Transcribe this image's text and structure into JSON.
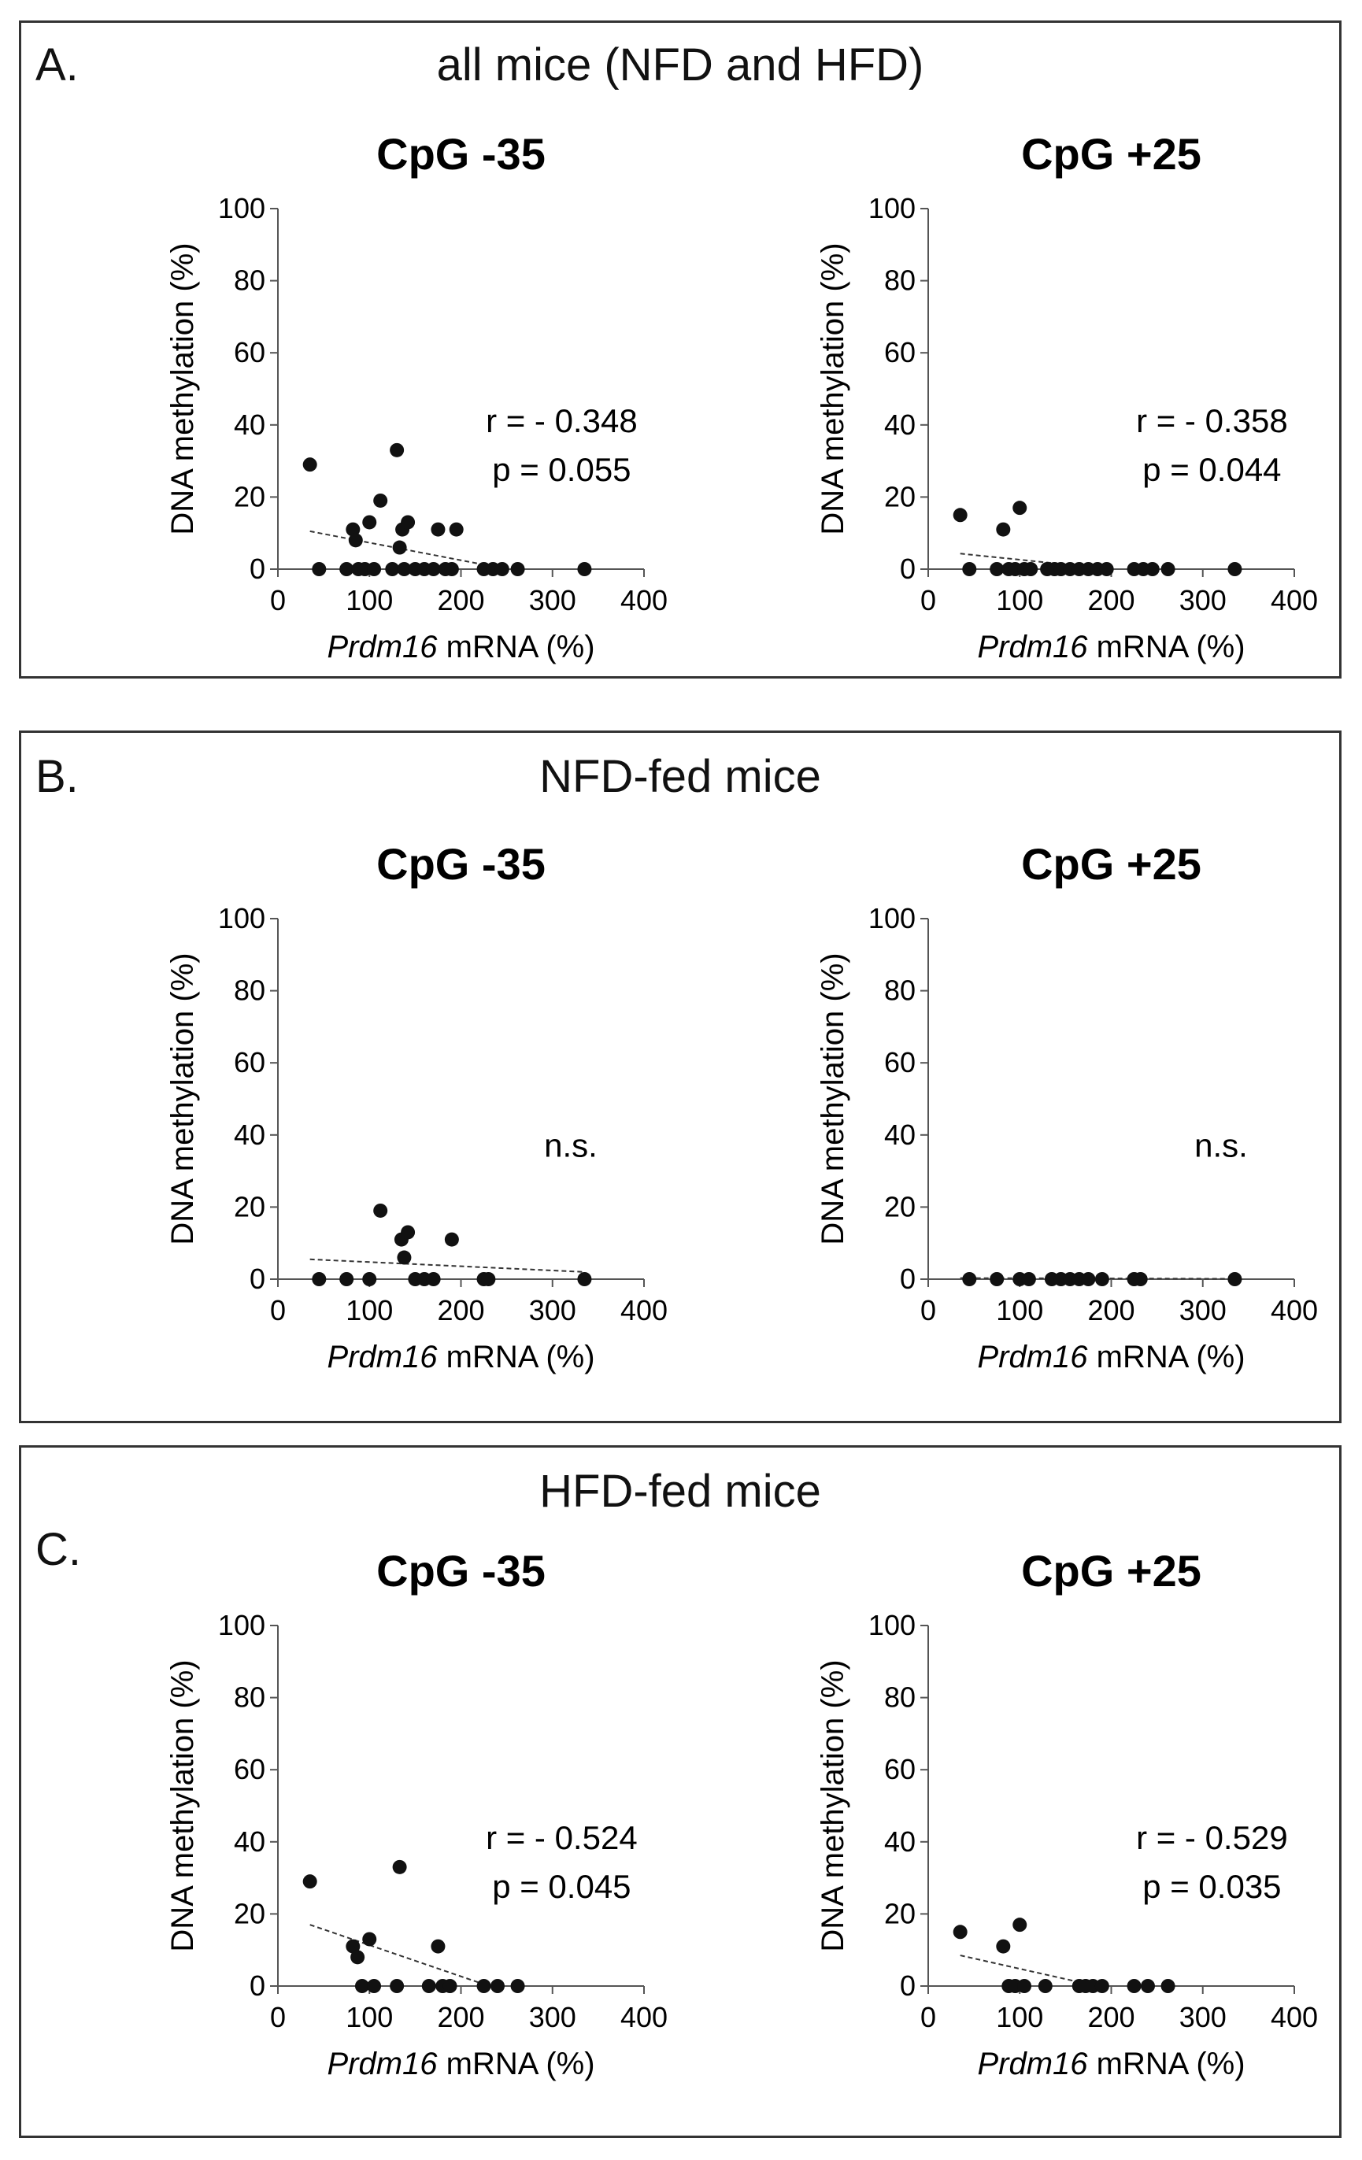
{
  "panels": [
    {
      "id": "A",
      "letter": "A.",
      "title": "all mice (NFD and HFD)",
      "charts": [
        {
          "type": "scatter",
          "title": "CpG -35",
          "xlabel_italic": "Prdm16",
          "xlabel_rest": " mRNA (%)",
          "ylabel": "DNA methylation (%)",
          "xlim": [
            0,
            400
          ],
          "ylim": [
            0,
            100
          ],
          "xticks": [
            0,
            100,
            200,
            300,
            400
          ],
          "yticks": [
            0,
            20,
            40,
            60,
            80,
            100
          ],
          "stat_lines": [
            "r = - 0.348",
            "p = 0.055"
          ],
          "trendline": {
            "x": [
              35,
              230
            ],
            "y": [
              10.5,
              1.0
            ]
          },
          "points": {
            "x": [
              35,
              45,
              75,
              82,
              85,
              88,
              95,
              100,
              105,
              112,
              125,
              130,
              133,
              136,
              138,
              142,
              150,
              160,
              170,
              175,
              183,
              190,
              195,
              225,
              235,
              245,
              262,
              335
            ],
            "y": [
              29,
              0,
              0,
              11,
              8,
              0,
              0,
              13,
              0,
              19,
              0,
              33,
              6,
              11,
              0,
              13,
              0,
              0,
              0,
              11,
              0,
              0,
              11,
              0,
              0,
              0,
              0,
              0
            ]
          }
        },
        {
          "type": "scatter",
          "title": "CpG +25",
          "xlabel_italic": "Prdm16",
          "xlabel_rest": " mRNA (%)",
          "ylabel": "DNA methylation (%)",
          "xlim": [
            0,
            400
          ],
          "ylim": [
            0,
            100
          ],
          "xticks": [
            0,
            100,
            200,
            300,
            400
          ],
          "yticks": [
            0,
            20,
            40,
            60,
            80,
            100
          ],
          "stat_lines": [
            "r = - 0.358",
            "p = 0.044"
          ],
          "trendline": {
            "x": [
              35,
              170
            ],
            "y": [
              4.3,
              0.8
            ]
          },
          "points": {
            "x": [
              35,
              45,
              75,
              82,
              88,
              95,
              100,
              105,
              112,
              130,
              138,
              145,
              155,
              165,
              175,
              185,
              195,
              225,
              235,
              245,
              262,
              335
            ],
            "y": [
              15,
              0,
              0,
              11,
              0,
              0,
              17,
              0,
              0,
              0,
              0,
              0,
              0,
              0,
              0,
              0,
              0,
              0,
              0,
              0,
              0,
              0
            ]
          }
        }
      ]
    },
    {
      "id": "B",
      "letter": "B.",
      "title": "NFD-fed mice",
      "charts": [
        {
          "type": "scatter",
          "title": "CpG -35",
          "xlabel_italic": "Prdm16",
          "xlabel_rest": " mRNA (%)",
          "ylabel": "DNA methylation (%)",
          "xlim": [
            0,
            400
          ],
          "ylim": [
            0,
            100
          ],
          "xticks": [
            0,
            100,
            200,
            300,
            400
          ],
          "yticks": [
            0,
            20,
            40,
            60,
            80,
            100
          ],
          "stat_lines": [
            "n.s."
          ],
          "trendline": {
            "x": [
              35,
              335
            ],
            "y": [
              5.5,
              2.0
            ]
          },
          "points": {
            "x": [
              45,
              75,
              100,
              112,
              135,
              138,
              142,
              150,
              160,
              170,
              190,
              225,
              230,
              335
            ],
            "y": [
              0,
              0,
              0,
              19,
              11,
              6,
              13,
              0,
              0,
              0,
              11,
              0,
              0,
              0
            ]
          }
        },
        {
          "type": "scatter",
          "title": "CpG +25",
          "xlabel_italic": "Prdm16",
          "xlabel_rest": " mRNA (%)",
          "ylabel": "DNA methylation (%)",
          "xlim": [
            0,
            400
          ],
          "ylim": [
            0,
            100
          ],
          "xticks": [
            0,
            100,
            200,
            300,
            400
          ],
          "yticks": [
            0,
            20,
            40,
            60,
            80,
            100
          ],
          "stat_lines": [
            "n.s."
          ],
          "trendline": {
            "x": [
              35,
              335
            ],
            "y": [
              0.3,
              0.1
            ]
          },
          "points": {
            "x": [
              45,
              75,
              100,
              110,
              135,
              145,
              155,
              165,
              175,
              190,
              225,
              232,
              335
            ],
            "y": [
              0,
              0,
              0,
              0,
              0,
              0,
              0,
              0,
              0,
              0,
              0,
              0,
              0
            ]
          }
        }
      ]
    },
    {
      "id": "C",
      "letter": "C.",
      "title": "HFD-fed mice",
      "charts": [
        {
          "type": "scatter",
          "title": "CpG -35",
          "xlabel_italic": "Prdm16",
          "xlabel_rest": " mRNA (%)",
          "ylabel": "DNA methylation (%)",
          "xlim": [
            0,
            400
          ],
          "ylim": [
            0,
            100
          ],
          "xticks": [
            0,
            100,
            200,
            300,
            400
          ],
          "yticks": [
            0,
            20,
            40,
            60,
            80,
            100
          ],
          "stat_lines": [
            "r = - 0.524",
            "p = 0.045"
          ],
          "trendline": {
            "x": [
              35,
              225
            ],
            "y": [
              17,
              0.5
            ]
          },
          "points": {
            "x": [
              35,
              82,
              87,
              92,
              100,
              105,
              130,
              133,
              165,
              175,
              180,
              188,
              225,
              240,
              262
            ],
            "y": [
              29,
              11,
              8,
              0,
              13,
              0,
              0,
              33,
              0,
              11,
              0,
              0,
              0,
              0,
              0
            ]
          }
        },
        {
          "type": "scatter",
          "title": "CpG +25",
          "xlabel_italic": "Prdm16",
          "xlabel_rest": " mRNA (%)",
          "ylabel": "DNA methylation (%)",
          "xlim": [
            0,
            400
          ],
          "ylim": [
            0,
            100
          ],
          "xticks": [
            0,
            100,
            200,
            300,
            400
          ],
          "yticks": [
            0,
            20,
            40,
            60,
            80,
            100
          ],
          "stat_lines": [
            "r = - 0.529",
            "p = 0.035"
          ],
          "trendline": {
            "x": [
              35,
              170
            ],
            "y": [
              8.5,
              0.8
            ]
          },
          "points": {
            "x": [
              35,
              82,
              88,
              95,
              100,
              105,
              128,
              165,
              172,
              180,
              190,
              225,
              240,
              262
            ],
            "y": [
              15,
              11,
              0,
              0,
              17,
              0,
              0,
              0,
              0,
              0,
              0,
              0,
              0,
              0
            ]
          }
        }
      ]
    }
  ]
}
